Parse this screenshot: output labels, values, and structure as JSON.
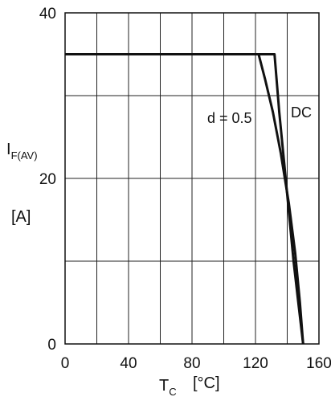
{
  "chart_data": {
    "type": "line",
    "xlabel_main": "T",
    "xlabel_sub": "C",
    "xlabel_unit": "[°C]",
    "ylabel_main": "I",
    "ylabel_sub": "F(AV)",
    "ylabel_unit": "[A]",
    "xlim": [
      0,
      160
    ],
    "ylim": [
      0,
      40
    ],
    "x_ticks": [
      0,
      40,
      80,
      120,
      160
    ],
    "x_tick_labels": [
      "0",
      "40",
      "80",
      "120",
      "160"
    ],
    "y_ticks": [
      0,
      20,
      40
    ],
    "y_tick_labels": [
      "0",
      "20",
      "40"
    ],
    "x_grid": [
      0,
      20,
      40,
      60,
      80,
      100,
      120,
      140,
      160
    ],
    "y_grid": [
      0,
      10,
      20,
      30,
      40
    ],
    "grid": true,
    "series": [
      {
        "name": "DC",
        "x": [
          0,
          132,
          135,
          138,
          141,
          144,
          147,
          150
        ],
        "y": [
          35,
          35,
          28,
          22,
          16,
          10,
          5,
          0
        ]
      },
      {
        "name": "d = 0.5",
        "x": [
          0,
          122,
          126,
          131,
          136,
          141,
          145,
          148,
          150
        ],
        "y": [
          35,
          35,
          32,
          28,
          23,
          17,
          11,
          5,
          0
        ]
      }
    ]
  }
}
